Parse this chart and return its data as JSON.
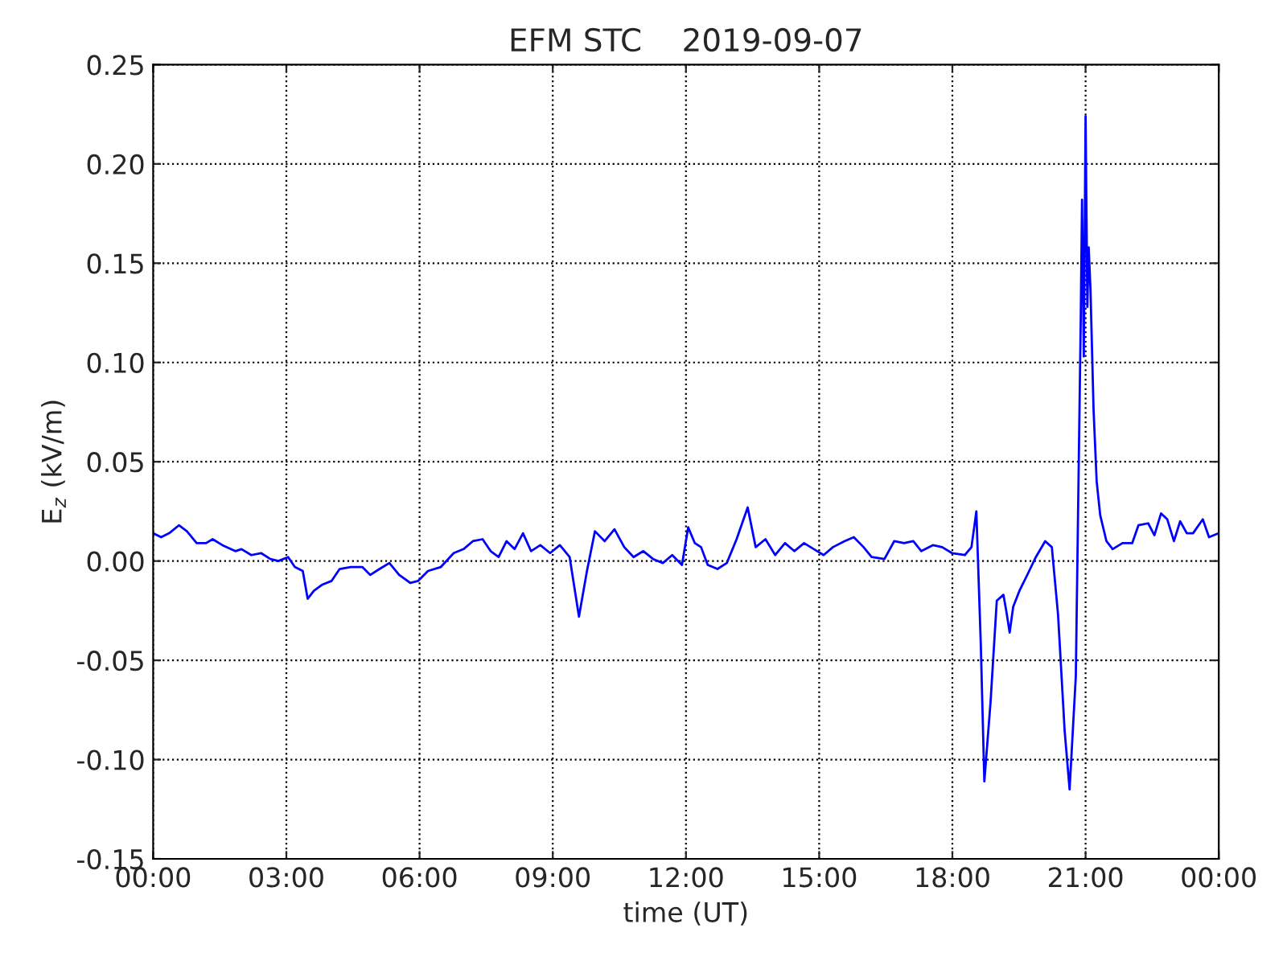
{
  "chart_data": {
    "type": "line",
    "title": "EFM STC    2019-09-07",
    "xlabel": "time (UT)",
    "ylabel": "E$_{z}$ (kV/m)",
    "xlim": [
      0,
      24
    ],
    "xticks": [
      {
        "value": 0,
        "label": "00:00"
      },
      {
        "value": 3,
        "label": "03:00"
      },
      {
        "value": 6,
        "label": "06:00"
      },
      {
        "value": 9,
        "label": "09:00"
      },
      {
        "value": 12,
        "label": "12:00"
      },
      {
        "value": 15,
        "label": "15:00"
      },
      {
        "value": 18,
        "label": "18:00"
      },
      {
        "value": 21,
        "label": "21:00"
      },
      {
        "value": 24,
        "label": "00:00"
      }
    ],
    "ylim": [
      -0.15,
      0.25
    ],
    "yticks": [
      {
        "value": -0.15,
        "label": "-0.15"
      },
      {
        "value": -0.1,
        "label": "-0.10"
      },
      {
        "value": -0.05,
        "label": "-0.05"
      },
      {
        "value": 0,
        "label": "0.00"
      },
      {
        "value": 0.05,
        "label": "0.05"
      },
      {
        "value": 0.1,
        "label": "0.10"
      },
      {
        "value": 0.15,
        "label": "0.15"
      },
      {
        "value": 0.2,
        "label": "0.20"
      },
      {
        "value": 0.25,
        "label": "0.25"
      }
    ],
    "grid": true,
    "line_style": "solid",
    "marker": "none",
    "series": [
      {
        "color": "#0000ff",
        "x": [
          0,
          0.18,
          0.36,
          0.58,
          0.76,
          0.98,
          1.19,
          1.34,
          1.56,
          1.85,
          1.99,
          2.21,
          2.43,
          2.64,
          2.82,
          3.04,
          3.19,
          3.37,
          3.48,
          3.62,
          3.8,
          4.02,
          4.2,
          4.45,
          4.71,
          4.89,
          5.1,
          5.32,
          5.54,
          5.79,
          5.97,
          6.19,
          6.48,
          6.77,
          6.99,
          7.2,
          7.42,
          7.6,
          7.78,
          7.96,
          8.14,
          8.33,
          8.51,
          8.72,
          8.94,
          9.16,
          9.38,
          9.59,
          9.77,
          9.95,
          10.17,
          10.39,
          10.61,
          10.82,
          11.04,
          11.26,
          11.48,
          11.69,
          11.91,
          12.05,
          12.2,
          12.34,
          12.49,
          12.71,
          12.92,
          13.14,
          13.39,
          13.57,
          13.79,
          14.01,
          14.23,
          14.44,
          14.66,
          14.88,
          15.1,
          15.31,
          15.57,
          15.78,
          16.0,
          16.18,
          16.47,
          16.69,
          16.91,
          17.12,
          17.3,
          17.56,
          17.77,
          17.99,
          18.28,
          18.43,
          18.54,
          18.64,
          18.72,
          18.86,
          19.0,
          19.15,
          19.22,
          19.29,
          19.37,
          19.51,
          19.73,
          19.88,
          20.09,
          20.24,
          20.38,
          20.53,
          20.64,
          20.78,
          20.89,
          20.92,
          20.96,
          21.0,
          21.04,
          21.07,
          21.11,
          21.18,
          21.25,
          21.33,
          21.47,
          21.61,
          21.83,
          22.05,
          22.19,
          22.41,
          22.55,
          22.7,
          22.84,
          22.99,
          23.13,
          23.28,
          23.42,
          23.64,
          23.78,
          24.0
        ],
        "values": [
          0.014,
          0.012,
          0.014,
          0.018,
          0.015,
          0.009,
          0.009,
          0.011,
          0.008,
          0.005,
          0.006,
          0.003,
          0.004,
          0.001,
          0.0,
          0.002,
          -0.003,
          -0.005,
          -0.019,
          -0.015,
          -0.012,
          -0.01,
          -0.004,
          -0.003,
          -0.003,
          -0.007,
          -0.004,
          -0.001,
          -0.007,
          -0.011,
          -0.01,
          -0.005,
          -0.003,
          0.004,
          0.006,
          0.01,
          0.011,
          0.005,
          0.002,
          0.01,
          0.006,
          0.014,
          0.005,
          0.008,
          0.004,
          0.008,
          0.002,
          -0.028,
          -0.005,
          0.015,
          0.01,
          0.016,
          0.007,
          0.002,
          0.005,
          0.001,
          -0.001,
          0.003,
          -0.002,
          0.017,
          0.009,
          0.007,
          -0.002,
          -0.004,
          -0.001,
          0.011,
          0.027,
          0.007,
          0.011,
          0.003,
          0.009,
          0.005,
          0.009,
          0.006,
          0.003,
          0.007,
          0.01,
          0.012,
          0.007,
          0.002,
          0.001,
          0.01,
          0.009,
          0.01,
          0.005,
          0.008,
          0.007,
          0.004,
          0.003,
          0.007,
          0.025,
          -0.042,
          -0.111,
          -0.071,
          -0.02,
          -0.017,
          -0.026,
          -0.036,
          -0.023,
          -0.015,
          -0.005,
          0.002,
          0.01,
          0.007,
          -0.027,
          -0.086,
          -0.115,
          -0.058,
          0.12,
          0.182,
          0.103,
          0.224,
          0.128,
          0.158,
          0.137,
          0.076,
          0.04,
          0.023,
          0.01,
          0.006,
          0.009,
          0.009,
          0.018,
          0.019,
          0.013,
          0.024,
          0.021,
          0.01,
          0.02,
          0.014,
          0.014,
          0.021,
          0.012,
          0.014
        ]
      }
    ]
  }
}
